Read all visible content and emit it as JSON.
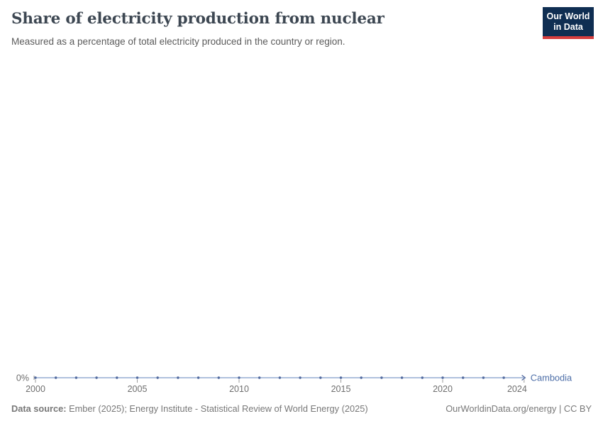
{
  "header": {
    "logo": {
      "line1": "Our World",
      "line2": "in Data"
    }
  },
  "chart_data": {
    "type": "line",
    "title": "Share of electricity production from nuclear",
    "subtitle": "Measured as a percentage of total electricity produced in the country or region.",
    "entity": "Cambodia",
    "x": [
      2000,
      2001,
      2002,
      2003,
      2004,
      2005,
      2006,
      2007,
      2008,
      2009,
      2010,
      2011,
      2012,
      2013,
      2014,
      2015,
      2016,
      2017,
      2018,
      2019,
      2020,
      2021,
      2022,
      2023,
      2024
    ],
    "values": [
      0,
      0,
      0,
      0,
      0,
      0,
      0,
      0,
      0,
      0,
      0,
      0,
      0,
      0,
      0,
      0,
      0,
      0,
      0,
      0,
      0,
      0,
      0,
      0,
      0
    ],
    "x_ticks": [
      "2000",
      "2005",
      "2010",
      "2015",
      "2020",
      "2024"
    ],
    "y_ticks": [
      "0%"
    ],
    "unit": "%",
    "grid": false,
    "legend_position": "end-of-line",
    "markers": true
  },
  "colors": {
    "line": "#a4b8d8",
    "point": "#51699e",
    "entity_label": "#4e6fa8",
    "axis_text": "#6e6e6e",
    "tick": "#9b9b9b",
    "logo_background": "#0f2e52",
    "logo_stripe": "#d63e3e"
  },
  "footer": {
    "datasource_label": "Data source:",
    "datasource_text": " Ember (2025); Energy Institute - Statistical Review of World Energy (2025)",
    "link": "OurWorldinData.org/energy | CC BY"
  }
}
